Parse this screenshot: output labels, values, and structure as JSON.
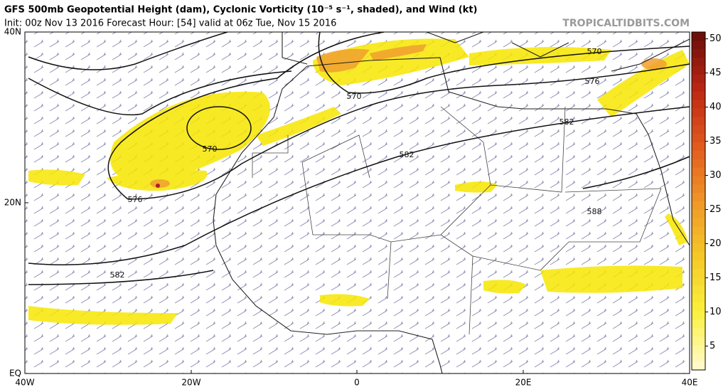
{
  "header": {
    "title": "GFS 500mb Geopotential Height (dam), Cyclonic Vorticity (10⁻⁵ s⁻¹, shaded), and Wind (kt)",
    "subtitle": "Init: 00z Nov 13 2016   Forecast Hour: [54]   valid at 06z Tue, Nov 15 2016",
    "source": "TROPICALTIDBITS.COM"
  },
  "map": {
    "lat_labels": [
      "40N",
      "20N",
      "EQ"
    ],
    "lon_labels": [
      "40W",
      "20W",
      "0",
      "20E",
      "40E"
    ],
    "contour_labels": [
      "570",
      "570",
      "576",
      "582",
      "582",
      "582",
      "576",
      "570",
      "588"
    ]
  },
  "colorbar": {
    "lim": [
      1.5,
      51
    ],
    "ticks": [
      5,
      10,
      15,
      20,
      25,
      30,
      35,
      40,
      45,
      50
    ]
  }
}
